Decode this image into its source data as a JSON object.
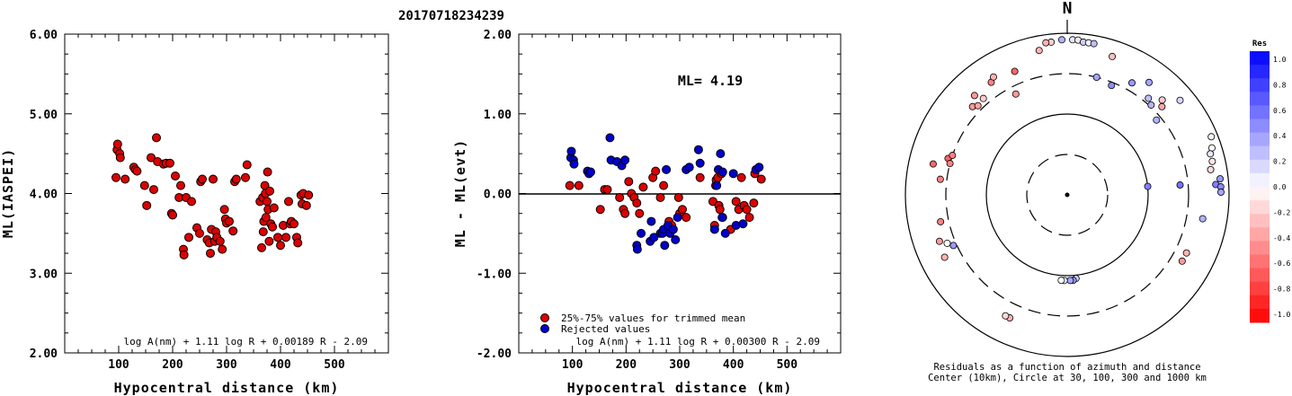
{
  "page_title": "20170718234239",
  "panel1": {
    "ylabel": "ML(IASPEI)",
    "xlabel": "Hypocentral distance (km)",
    "formula": "log A(nm) + 1.11 log R + 0.00189 R - 2.09",
    "xticks": [
      "100",
      "200",
      "300",
      "400",
      "500"
    ],
    "yticks": [
      "2.00",
      "3.00",
      "4.00",
      "5.00",
      "6.00"
    ]
  },
  "panel2": {
    "ylabel": "ML - ML(evt)",
    "xlabel": "Hypocentral distance (km)",
    "formula": "log A(nm) + 1.11 log R + 0.00300 R - 2.09",
    "ml_label": "ML= 4.19",
    "legend": [
      "25%-75% values for trimmed mean",
      "Rejected values"
    ],
    "xticks": [
      "100",
      "200",
      "300",
      "400",
      "500"
    ],
    "yticks": [
      "-2.00",
      "-1.00",
      "0.00",
      "1.00",
      "2.00"
    ]
  },
  "panel3": {
    "north_label": "N",
    "caption_line1": "Residuals as a function of azimuth and distance",
    "caption_line2": "Center (10km), Circle at 30, 100, 300 and 1000 km",
    "colorbar_title": "Res",
    "colorbar_ticks": [
      "1.0",
      "0.8",
      "0.6",
      "0.4",
      "0.2",
      "0.0",
      "-0.2",
      "-0.4",
      "-0.6",
      "-0.8",
      "-1.0"
    ]
  },
  "colors": {
    "accepted": "#dd0000",
    "rejected": "#0000cc"
  },
  "chart_data": [
    {
      "type": "scatter",
      "title": "20170718234239",
      "xlabel": "Hypocentral distance (km)",
      "ylabel": "ML(IASPEI)",
      "xlim": [
        0,
        600
      ],
      "ylim": [
        2,
        6
      ],
      "annotation": "log A(nm) + 1.11 log R + 0.00189 R - 2.09",
      "points": [
        [
          95,
          4.2
        ],
        [
          97,
          4.55
        ],
        [
          98,
          4.62
        ],
        [
          102,
          4.5
        ],
        [
          103,
          4.45
        ],
        [
          112,
          4.18
        ],
        [
          128,
          4.33
        ],
        [
          131,
          4.3
        ],
        [
          134,
          4.28
        ],
        [
          148,
          4.1
        ],
        [
          152,
          3.85
        ],
        [
          160,
          4.45
        ],
        [
          165,
          4.05
        ],
        [
          170,
          4.7
        ],
        [
          172,
          4.4
        ],
        [
          183,
          4.37
        ],
        [
          188,
          4.38
        ],
        [
          195,
          4.38
        ],
        [
          198,
          3.75
        ],
        [
          200,
          3.73
        ],
        [
          205,
          4.22
        ],
        [
          212,
          3.95
        ],
        [
          215,
          4.1
        ],
        [
          220,
          3.3
        ],
        [
          221,
          3.23
        ],
        [
          225,
          3.95
        ],
        [
          230,
          3.45
        ],
        [
          235,
          3.9
        ],
        [
          245,
          3.57
        ],
        [
          250,
          3.5
        ],
        [
          252,
          4.15
        ],
        [
          255,
          4.18
        ],
        [
          264,
          3.42
        ],
        [
          268,
          3.38
        ],
        [
          270,
          3.25
        ],
        [
          272,
          3.55
        ],
        [
          275,
          4.18
        ],
        [
          278,
          3.4
        ],
        [
          280,
          3.52
        ],
        [
          282,
          3.45
        ],
        [
          288,
          3.4
        ],
        [
          292,
          3.3
        ],
        [
          296,
          3.8
        ],
        [
          298,
          3.68
        ],
        [
          300,
          3.63
        ],
        [
          305,
          3.65
        ],
        [
          312,
          3.53
        ],
        [
          315,
          4.15
        ],
        [
          318,
          4.18
        ],
        [
          335,
          4.2
        ],
        [
          338,
          4.36
        ],
        [
          362,
          3.9
        ],
        [
          365,
          3.32
        ],
        [
          367,
          3.95
        ],
        [
          368,
          3.52
        ],
        [
          369,
          3.65
        ],
        [
          371,
          4.1
        ],
        [
          372,
          4.0
        ],
        [
          373,
          3.7
        ],
        [
          375,
          3.9
        ],
        [
          376,
          4.27
        ],
        [
          377,
          3.8
        ],
        [
          379,
          3.4
        ],
        [
          380,
          4.03
        ],
        [
          382,
          3.62
        ],
        [
          385,
          3.58
        ],
        [
          388,
          3.82
        ],
        [
          395,
          3.45
        ],
        [
          400,
          3.35
        ],
        [
          405,
          3.6
        ],
        [
          410,
          3.45
        ],
        [
          415,
          3.9
        ],
        [
          418,
          3.62
        ],
        [
          420,
          3.65
        ],
        [
          425,
          3.62
        ],
        [
          430,
          3.45
        ],
        [
          432,
          3.38
        ],
        [
          438,
          3.98
        ],
        [
          440,
          3.87
        ],
        [
          442,
          4.0
        ],
        [
          448,
          3.85
        ],
        [
          452,
          3.98
        ]
      ]
    },
    {
      "type": "scatter",
      "xlabel": "Hypocentral distance (km)",
      "ylabel": "ML - ML(evt)",
      "xlim": [
        0,
        600
      ],
      "ylim": [
        -2,
        2
      ],
      "annotation": "log A(nm) + 1.11 log R + 0.00300 R - 2.09",
      "ML": 4.19,
      "reference_line_y": 0,
      "series": [
        {
          "name": "25%-75% values for trimmed mean",
          "points": [
            [
              95,
              0.1
            ],
            [
              112,
              0.1
            ],
            [
              152,
              -0.2
            ],
            [
              160,
              0.05
            ],
            [
              165,
              0.05
            ],
            [
              188,
              -0.05
            ],
            [
              195,
              -0.2
            ],
            [
              198,
              -0.25
            ],
            [
              205,
              0.15
            ],
            [
              210,
              0.0
            ],
            [
              215,
              -0.05
            ],
            [
              220,
              -0.12
            ],
            [
              225,
              -0.25
            ],
            [
              232,
              0.08
            ],
            [
              250,
              0.2
            ],
            [
              255,
              0.28
            ],
            [
              264,
              -0.05
            ],
            [
              270,
              0.1
            ],
            [
              280,
              -0.35
            ],
            [
              285,
              -0.4
            ],
            [
              298,
              -0.05
            ],
            [
              300,
              -0.25
            ],
            [
              305,
              -0.2
            ],
            [
              312,
              -0.3
            ],
            [
              338,
              0.2
            ],
            [
              362,
              -0.1
            ],
            [
              365,
              -0.4
            ],
            [
              367,
              0.1
            ],
            [
              368,
              0.17
            ],
            [
              371,
              0.2
            ],
            [
              373,
              -0.15
            ],
            [
              375,
              -0.2
            ],
            [
              378,
              0.25
            ],
            [
              380,
              -0.3
            ],
            [
              395,
              -0.45
            ],
            [
              405,
              -0.1
            ],
            [
              410,
              -0.2
            ],
            [
              415,
              0.2
            ],
            [
              420,
              -0.15
            ],
            [
              425,
              -0.2
            ],
            [
              430,
              -0.3
            ],
            [
              438,
              -0.12
            ],
            [
              440,
              0.25
            ],
            [
              452,
              0.18
            ]
          ]
        },
        {
          "name": "Rejected values",
          "points": [
            [
              97,
              0.45
            ],
            [
              98,
              0.53
            ],
            [
              102,
              0.42
            ],
            [
              103,
              0.37
            ],
            [
              128,
              0.28
            ],
            [
              131,
              0.25
            ],
            [
              134,
              0.27
            ],
            [
              170,
              0.7
            ],
            [
              172,
              0.42
            ],
            [
              183,
              0.4
            ],
            [
              192,
              0.35
            ],
            [
              198,
              0.42
            ],
            [
              220,
              -0.65
            ],
            [
              221,
              -0.7
            ],
            [
              228,
              -0.5
            ],
            [
              245,
              -0.6
            ],
            [
              247,
              -0.35
            ],
            [
              252,
              -0.55
            ],
            [
              264,
              -0.5
            ],
            [
              268,
              -0.5
            ],
            [
              270,
              -0.45
            ],
            [
              272,
              -0.65
            ],
            [
              275,
              0.3
            ],
            [
              278,
              -0.4
            ],
            [
              282,
              -0.5
            ],
            [
              288,
              -0.45
            ],
            [
              292,
              -0.58
            ],
            [
              296,
              -0.3
            ],
            [
              312,
              0.3
            ],
            [
              318,
              0.33
            ],
            [
              335,
              0.55
            ],
            [
              338,
              0.38
            ],
            [
              365,
              -0.45
            ],
            [
              369,
              0.1
            ],
            [
              372,
              0.3
            ],
            [
              376,
              0.5
            ],
            [
              379,
              -0.3
            ],
            [
              380,
              0.27
            ],
            [
              385,
              -0.5
            ],
            [
              400,
              0.25
            ],
            [
              405,
              -0.4
            ],
            [
              418,
              -0.38
            ],
            [
              442,
              0.3
            ],
            [
              448,
              0.33
            ]
          ]
        }
      ]
    },
    {
      "type": "scatter",
      "title": "Residuals as a function of azimuth and distance",
      "subtitle": "Center (10km), Circle at 30, 100, 300 and 1000 km",
      "colorbar_range": [
        -1.0,
        1.0
      ],
      "stations": [
        {
          "az": 358,
          "r": 0.96,
          "res": 0.3
        },
        {
          "az": 2,
          "r": 0.96,
          "res": 0.1
        },
        {
          "az": 4,
          "r": 0.96,
          "res": -0.1
        },
        {
          "az": 6,
          "r": 0.95,
          "res": 0.2
        },
        {
          "az": 8,
          "r": 0.95,
          "res": 0.05
        },
        {
          "az": 10,
          "r": 0.95,
          "res": 0.25
        },
        {
          "az": 354,
          "r": 0.95,
          "res": -0.2
        },
        {
          "az": 352,
          "r": 0.95,
          "res": -0.3
        },
        {
          "az": 18,
          "r": 0.9,
          "res": -0.25
        },
        {
          "az": 14,
          "r": 0.75,
          "res": 0.35
        },
        {
          "az": 22,
          "r": 0.73,
          "res": 0.45
        },
        {
          "az": 30,
          "r": 0.8,
          "res": 0.4
        },
        {
          "az": 36,
          "r": 0.86,
          "res": 0.35
        },
        {
          "az": 40,
          "r": 0.78,
          "res": 0.25
        },
        {
          "az": 43,
          "r": 0.76,
          "res": 0.3
        },
        {
          "az": 45,
          "r": 0.83,
          "res": -0.2
        },
        {
          "az": 47,
          "r": 0.8,
          "res": -0.35
        },
        {
          "az": 50,
          "r": 0.91,
          "res": 0.15
        },
        {
          "az": 50,
          "r": 0.72,
          "res": 0.3
        },
        {
          "az": 68,
          "r": 0.96,
          "res": 0.05
        },
        {
          "az": 72,
          "r": 0.94,
          "res": 0.0
        },
        {
          "az": 74,
          "r": 0.92,
          "res": 0.1
        },
        {
          "az": 77,
          "r": 0.92,
          "res": -0.1
        },
        {
          "az": 80,
          "r": 0.9,
          "res": -0.15
        },
        {
          "az": 84,
          "r": 0.95,
          "res": 0.4
        },
        {
          "az": 86,
          "r": 0.92,
          "res": 0.5
        },
        {
          "az": 87,
          "r": 0.95,
          "res": 0.45
        },
        {
          "az": 89,
          "r": 0.95,
          "res": 0.35
        },
        {
          "az": 84,
          "r": 0.5,
          "res": 0.5
        },
        {
          "az": 85,
          "r": 0.7,
          "res": 0.55
        },
        {
          "az": 100,
          "r": 0.85,
          "res": 0.3
        },
        {
          "az": 116,
          "r": 0.82,
          "res": -0.3
        },
        {
          "az": 120,
          "r": 0.82,
          "res": -0.4
        },
        {
          "az": 174,
          "r": 0.52,
          "res": 0.2
        },
        {
          "az": 176,
          "r": 0.53,
          "res": 0.4
        },
        {
          "az": 178,
          "r": 0.53,
          "res": 0.35
        },
        {
          "az": 182,
          "r": 0.53,
          "res": 0.05
        },
        {
          "az": 184,
          "r": 0.53,
          "res": 0.0
        },
        {
          "az": 205,
          "r": 0.84,
          "res": -0.3
        },
        {
          "az": 207,
          "r": 0.84,
          "res": -0.15
        },
        {
          "az": 243,
          "r": 0.85,
          "res": -0.3
        },
        {
          "az": 250,
          "r": 0.84,
          "res": -0.4
        },
        {
          "az": 248,
          "r": 0.8,
          "res": 0.0
        },
        {
          "az": 246,
          "r": 0.77,
          "res": 0.4
        },
        {
          "az": 258,
          "r": 0.8,
          "res": -0.5
        },
        {
          "az": 277,
          "r": 0.79,
          "res": -0.5
        },
        {
          "az": 283,
          "r": 0.85,
          "res": -0.6
        },
        {
          "az": 287,
          "r": 0.77,
          "res": -0.6
        },
        {
          "az": 285,
          "r": 0.75,
          "res": -0.5
        },
        {
          "az": 289,
          "r": 0.75,
          "res": -0.5
        },
        {
          "az": 313,
          "r": 0.8,
          "res": -0.4
        },
        {
          "az": 315,
          "r": 0.78,
          "res": -0.35
        },
        {
          "az": 317,
          "r": 0.84,
          "res": -0.4
        },
        {
          "az": 319,
          "r": 0.79,
          "res": -0.2
        },
        {
          "az": 326,
          "r": 0.84,
          "res": -0.5
        },
        {
          "az": 328,
          "r": 0.86,
          "res": -0.3
        },
        {
          "az": 333,
          "r": 0.7,
          "res": -0.4
        },
        {
          "az": 337,
          "r": 0.83,
          "res": -0.6
        },
        {
          "az": 349,
          "r": 0.91,
          "res": -0.3
        }
      ]
    }
  ]
}
